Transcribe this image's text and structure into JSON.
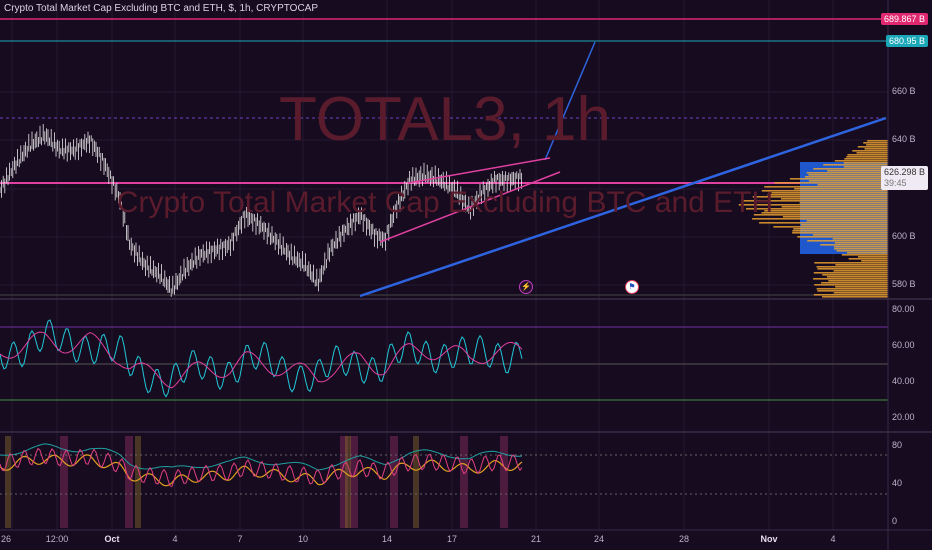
{
  "header": {
    "title": "Crypto Total Market Cap Excluding BTC and ETH, $, 1h, CRYPTOCAP"
  },
  "watermark": {
    "symbol": "TOTAL3, 1h",
    "name": "Crypto Total Market Cap Excluding BTC and ETH"
  },
  "price_axis": {
    "labels": [
      "660 B",
      "640 B",
      "600 B",
      "580 B"
    ]
  },
  "price_badges": {
    "top_red": "689.867 B",
    "cyan": "680.95 B",
    "last_price": "626.298 B",
    "countdown": "39:45"
  },
  "rsi_axis": {
    "labels": [
      "80.00",
      "60.00",
      "40.00",
      "20.00"
    ]
  },
  "osc_axis": {
    "labels": [
      "80",
      "40",
      "0"
    ]
  },
  "time_axis": {
    "labels": [
      "26",
      "12:00",
      "Oct",
      "4",
      "7",
      "10",
      "14",
      "17",
      "21",
      "24",
      "28",
      "Nov",
      "4"
    ]
  },
  "events": {
    "lightning_icon": "lightning-icon",
    "flag_icon": "flag-icon"
  },
  "colors": {
    "background": "#170b1f",
    "magenta": "#e040a0",
    "cyan": "#20c8d8",
    "blue": "#2e64e0",
    "volume_profile": "#e8a030",
    "candle": "#e8e8e8"
  }
}
